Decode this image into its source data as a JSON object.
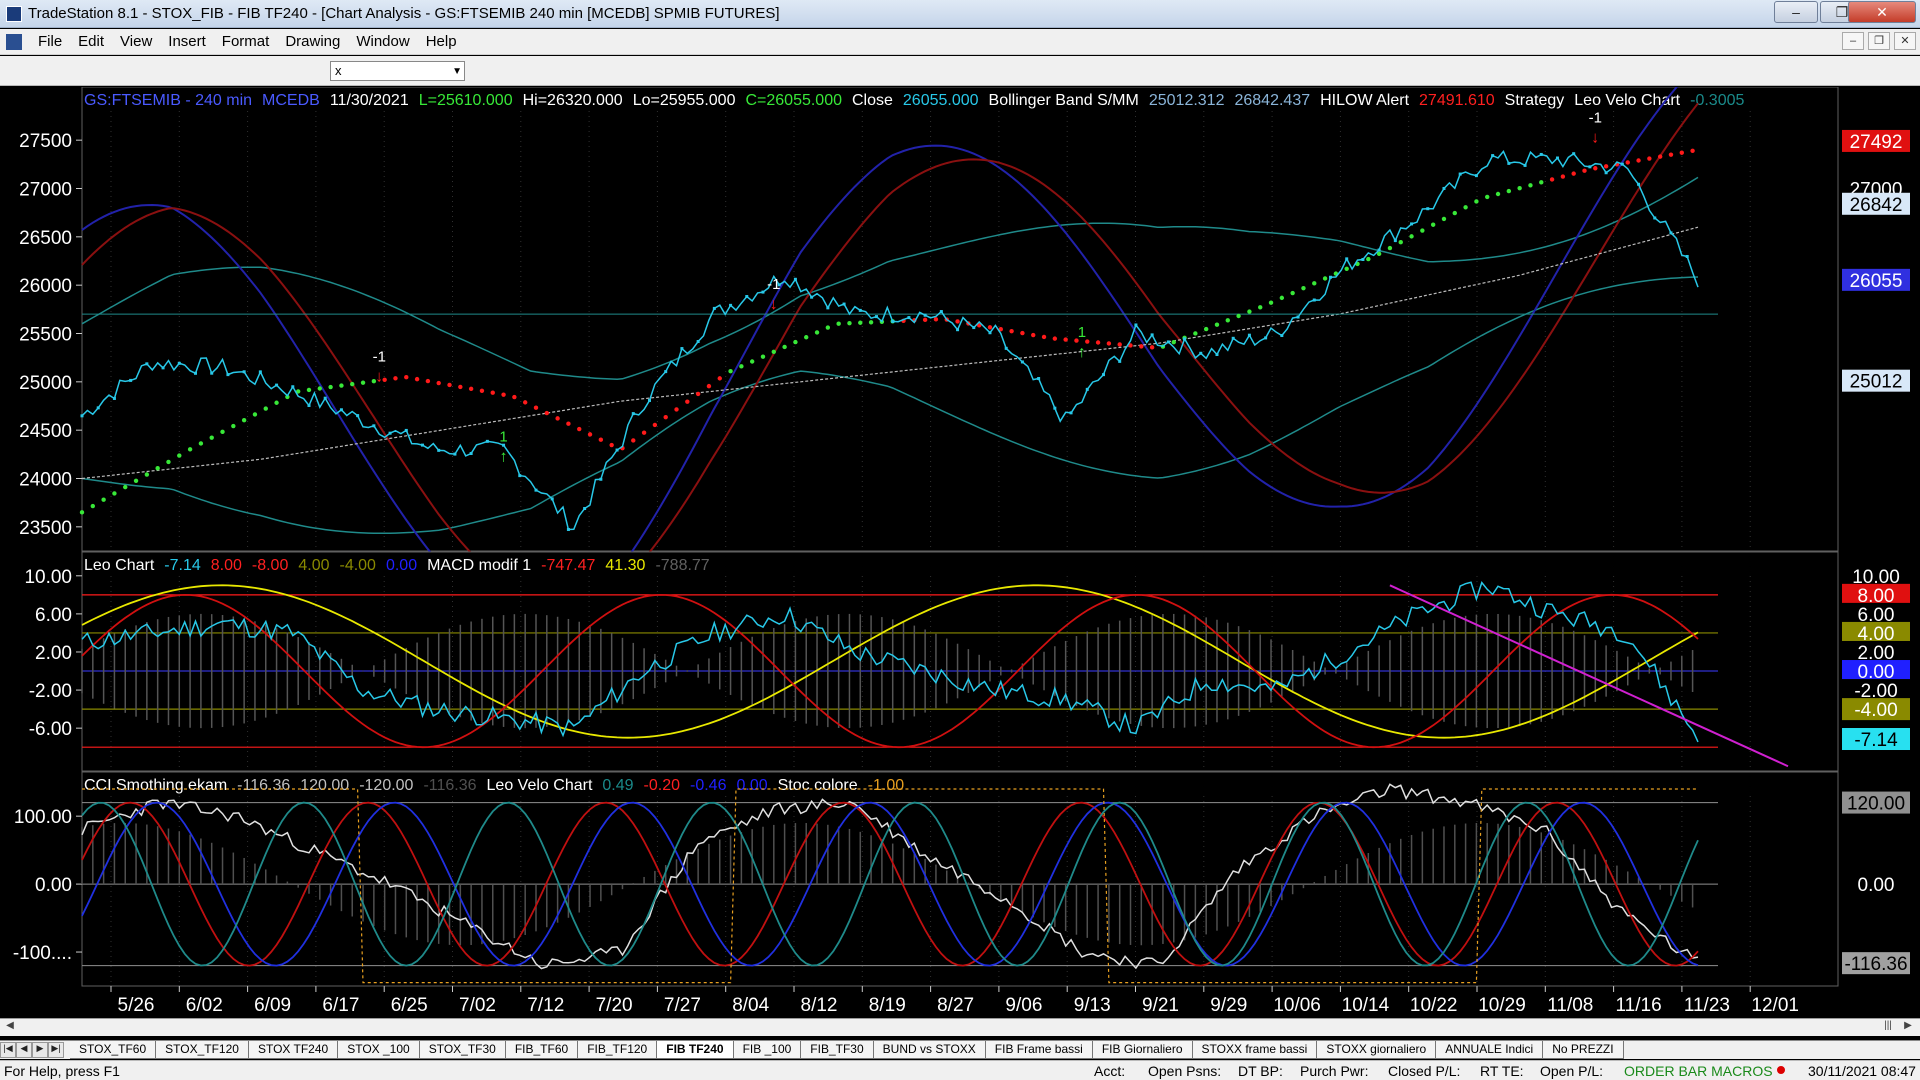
{
  "window": {
    "title": "TradeStation 8.1 - STOX_FIB - FIB TF240 - [Chart Analysis - GS:FTSEMIB  240 min  [MCEDB] SPMIB FUTURES]",
    "minimize": "‒",
    "maximize": "❐",
    "close": "✕"
  },
  "menu": [
    "File",
    "Edit",
    "View",
    "Insert",
    "Format",
    "Drawing",
    "Window",
    "Help"
  ],
  "mdi_buttons": [
    "–",
    "❐",
    "✕"
  ],
  "toolbar": {
    "symbol_value": "x",
    "dropdown_icon": "chevron-down-icon"
  },
  "colors": {
    "price": "#28c8e8",
    "white": "#ffffff",
    "red": "#ff1a1a",
    "green": "#38e838",
    "yellow": "#e8e800",
    "blue": "#2020ff",
    "olive": "#8a8a00",
    "gray": "#808080"
  },
  "panel1": {
    "header": [
      {
        "text": "GS:FTSEMIB - 240 min",
        "color": "#4a5aff"
      },
      {
        "text": "MCEDB",
        "color": "#4a5aff"
      },
      {
        "text": "11/30/2021",
        "color": "#ffffff"
      },
      {
        "text": "L=25610.000",
        "color": "#38e838"
      },
      {
        "text": "Hi=26320.000",
        "color": "#ffffff"
      },
      {
        "text": "Lo=25955.000",
        "color": "#ffffff"
      },
      {
        "text": "C=26055.000",
        "color": "#38e838"
      },
      {
        "text": "Close",
        "color": "#ffffff"
      },
      {
        "text": "26055.000",
        "color": "#28c8e8"
      },
      {
        "text": "Bollinger Band S/MM",
        "color": "#ffffff"
      },
      {
        "text": "25012.312",
        "color": "#8ab4d8"
      },
      {
        "text": "26842.437",
        "color": "#8ab4d8"
      },
      {
        "text": "HILOW Alert",
        "color": "#ffffff"
      },
      {
        "text": "27491.610",
        "color": "#ff2020"
      },
      {
        "text": "Strategy",
        "color": "#ffffff"
      },
      {
        "text": "Leo Velo Chart",
        "color": "#ffffff"
      },
      {
        "text": "-0.3005",
        "color": "#1a8a8a"
      }
    ],
    "y_ticks": [
      "27500",
      "27000",
      "26500",
      "26000",
      "25500",
      "25000",
      "24500",
      "24000",
      "23500"
    ],
    "y_tick_values": [
      27500,
      27000,
      26500,
      26000,
      25500,
      25000,
      24500,
      24000,
      23500
    ],
    "y_range": [
      23250,
      28050
    ],
    "right_labels": [
      {
        "text": "27492",
        "value": 27492,
        "bg": "#e01010",
        "fg": "#ffffff"
      },
      {
        "text": "27000",
        "value": 27000,
        "bg": "#000000",
        "fg": "#ffffff"
      },
      {
        "text": "26842",
        "value": 26842,
        "bg": "#d8e8f8",
        "fg": "#000000"
      },
      {
        "text": "26055",
        "value": 26055,
        "bg": "#3030e0",
        "fg": "#ffffff"
      },
      {
        "text": "25012",
        "value": 25012,
        "bg": "#d8e8f8",
        "fg": "#000000"
      }
    ],
    "markers": [
      {
        "text": "-1",
        "color": "#ffffff"
      },
      {
        "text": "-1",
        "color": "#ffffff"
      },
      {
        "text": "-1",
        "color": "#ffffff"
      },
      {
        "text": "1",
        "color": "#38e838"
      },
      {
        "text": "1",
        "color": "#38e838"
      }
    ]
  },
  "panel2": {
    "header": [
      {
        "text": "Leo Chart",
        "color": "#ffffff"
      },
      {
        "text": "-7.14",
        "color": "#28c8e8"
      },
      {
        "text": "8.00",
        "color": "#ff2020"
      },
      {
        "text": "-8.00",
        "color": "#ff2020"
      },
      {
        "text": "4.00",
        "color": "#8a8a00"
      },
      {
        "text": "-4.00",
        "color": "#8a8a00"
      },
      {
        "text": "0.00",
        "color": "#2020ff"
      },
      {
        "text": "MACD modif 1",
        "color": "#ffffff"
      },
      {
        "text": "-747.47",
        "color": "#ff2020"
      },
      {
        "text": "41.30",
        "color": "#e8e800"
      },
      {
        "text": "-788.77",
        "color": "#606060"
      }
    ],
    "y_ticks": [
      "10.00",
      "6.00",
      "2.00",
      "-2.00",
      "-6.00"
    ],
    "y_tick_values": [
      10,
      6,
      2,
      -2,
      -6
    ],
    "y_range": [
      -10.5,
      12.5
    ],
    "right_labels": [
      {
        "text": "10.00",
        "value": 10,
        "bg": "#000000",
        "fg": "#ffffff"
      },
      {
        "text": "8.00",
        "value": 8,
        "bg": "#e01010",
        "fg": "#ffffff"
      },
      {
        "text": "6.00",
        "value": 6,
        "bg": "#000000",
        "fg": "#ffffff"
      },
      {
        "text": "4.00",
        "value": 4,
        "bg": "#8a8a00",
        "fg": "#ffffff"
      },
      {
        "text": "2.00",
        "value": 2,
        "bg": "#000000",
        "fg": "#ffffff"
      },
      {
        "text": "0.00",
        "value": 0,
        "bg": "#2020ff",
        "fg": "#ffffff"
      },
      {
        "text": "-2.00",
        "value": -2,
        "bg": "#000000",
        "fg": "#ffffff"
      },
      {
        "text": "-4.00",
        "value": -4,
        "bg": "#8a8a00",
        "fg": "#ffffff"
      },
      {
        "text": "-7.14",
        "value": -7.14,
        "bg": "#28e0f0",
        "fg": "#000000"
      }
    ]
  },
  "panel3": {
    "header": [
      {
        "text": "CCI Smothing ekam",
        "color": "#ffffff"
      },
      {
        "text": "-116.36",
        "color": "#c0c0c0"
      },
      {
        "text": "120.00",
        "color": "#c0c0c0"
      },
      {
        "text": "-120.00",
        "color": "#c0c0c0"
      },
      {
        "text": "-116.36",
        "color": "#505050"
      },
      {
        "text": "Leo Velo Chart",
        "color": "#ffffff"
      },
      {
        "text": "0.49",
        "color": "#1a8a8a"
      },
      {
        "text": "-0.20",
        "color": "#ff2020"
      },
      {
        "text": "-0.46",
        "color": "#2020ff"
      },
      {
        "text": "0.00",
        "color": "#2020ff"
      },
      {
        "text": "Stoc colore",
        "color": "#ffffff"
      },
      {
        "text": "-1.00",
        "color": "#e8a020"
      }
    ],
    "y_ticks": [
      "100.00",
      "0.00",
      "-100...."
    ],
    "y_tick_values": [
      100,
      0,
      -100
    ],
    "y_range": [
      -150,
      165
    ],
    "right_labels": [
      {
        "text": "120.00",
        "value": 120,
        "bg": "#909090",
        "fg": "#000000"
      },
      {
        "text": "0.00",
        "value": 0,
        "bg": "#000000",
        "fg": "#ffffff"
      },
      {
        "text": "-116.36",
        "value": -116.36,
        "bg": "#a0a0a0",
        "fg": "#000000"
      }
    ]
  },
  "x_axis": {
    "labels": [
      "5/26",
      "6/02",
      "6/09",
      "6/17",
      "6/25",
      "7/02",
      "7/12",
      "7/20",
      "7/27",
      "8/04",
      "8/12",
      "8/19",
      "8/27",
      "9/06",
      "9/13",
      "9/21",
      "9/29",
      "10/06",
      "10/14",
      "10/22",
      "10/29",
      "11/08",
      "11/16",
      "11/23",
      "12/01"
    ]
  },
  "chart_data": {
    "type": "line",
    "title": "GS:FTSEMIB - 240 min",
    "xlabel": "",
    "ylabel": "",
    "x": [
      "5/26",
      "6/02",
      "6/09",
      "6/17",
      "6/25",
      "7/02",
      "7/12",
      "7/20",
      "7/27",
      "8/04",
      "8/12",
      "8/19",
      "8/27",
      "9/06",
      "9/13",
      "9/21",
      "9/29",
      "10/06",
      "10/14",
      "10/22",
      "10/29",
      "11/08",
      "11/16",
      "11/23",
      "12/01"
    ],
    "ylim": [
      23250,
      28050
    ],
    "series": [
      {
        "name": "Close",
        "values": [
          24650,
          25200,
          25150,
          24900,
          24600,
          24300,
          24300,
          23500,
          24800,
          25700,
          26100,
          25700,
          25700,
          25500,
          24600,
          25500,
          25300,
          25500,
          26200,
          26700,
          27300,
          27300,
          27200,
          26055,
          null
        ]
      }
    ]
  }
}
